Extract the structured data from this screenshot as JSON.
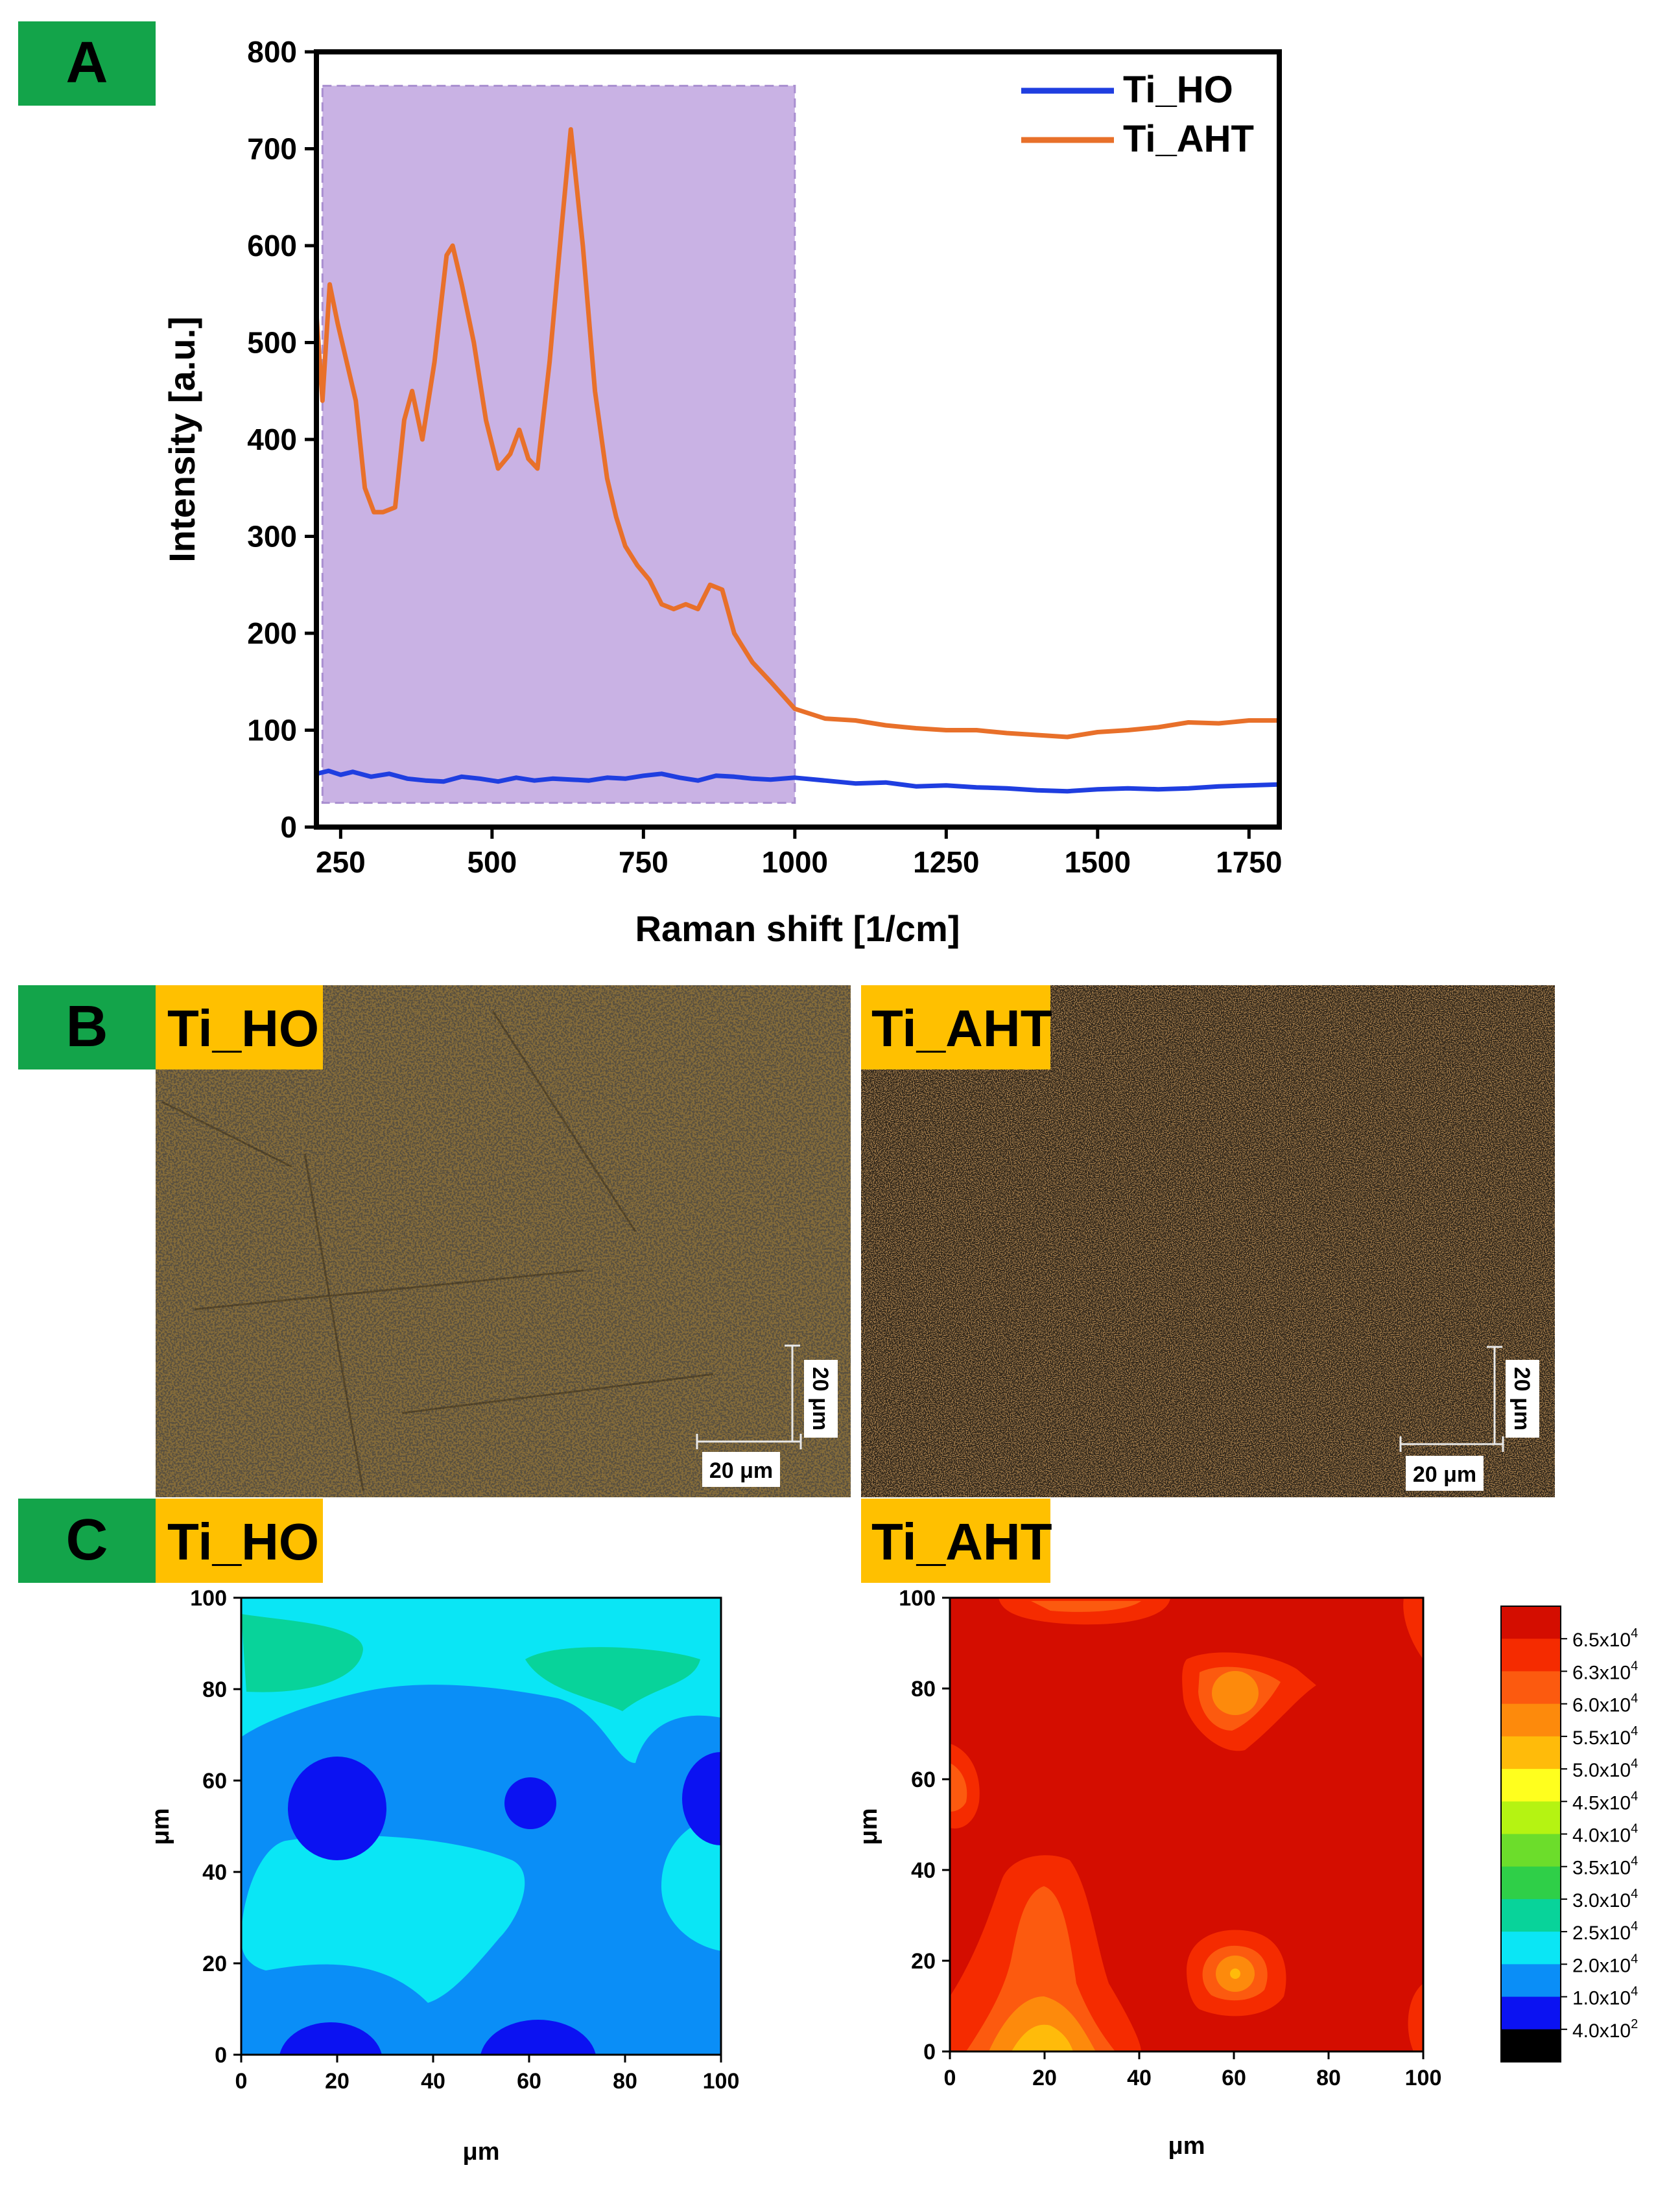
{
  "panels": {
    "A": {
      "label": "A"
    },
    "B": {
      "label": "B",
      "left_title": "Ti_HO",
      "right_title": "Ti_AHT",
      "scale_bar_h": "20 μm",
      "scale_bar_v": "20 μm"
    },
    "C": {
      "label": "C",
      "left_title": "Ti_HO",
      "right_title": "Ti_AHT"
    }
  },
  "colors": {
    "label_bg": "#13a44a",
    "title_bg": "#ffc000",
    "ho": "#1f3ee0",
    "aht": "#e8702a",
    "shade": "#c9b2e4"
  },
  "chart_data": [
    {
      "id": "raman",
      "type": "line",
      "title": "",
      "xlabel": "Raman shift [1/cm]",
      "ylabel": "Intensity [a.u.]",
      "xlim": [
        210,
        1800
      ],
      "ylim": [
        0,
        800
      ],
      "xticks": [
        250,
        500,
        750,
        1000,
        1250,
        1500,
        1750
      ],
      "yticks": [
        0,
        100,
        200,
        300,
        400,
        500,
        600,
        700,
        800
      ],
      "legend_position": "top-right",
      "shaded_region": {
        "x": [
          220,
          1000
        ],
        "y": [
          25,
          765
        ]
      },
      "series": [
        {
          "name": "Ti_HO",
          "color": "#1f3ee0",
          "x": [
            210,
            230,
            250,
            270,
            300,
            330,
            360,
            390,
            420,
            450,
            480,
            510,
            540,
            570,
            600,
            630,
            660,
            690,
            720,
            750,
            780,
            810,
            840,
            870,
            900,
            930,
            960,
            1000,
            1050,
            1100,
            1150,
            1200,
            1250,
            1300,
            1350,
            1400,
            1450,
            1500,
            1550,
            1600,
            1650,
            1700,
            1750,
            1800
          ],
          "y": [
            55,
            58,
            54,
            57,
            52,
            55,
            50,
            48,
            47,
            52,
            50,
            47,
            51,
            48,
            50,
            49,
            48,
            51,
            50,
            53,
            55,
            51,
            48,
            53,
            52,
            50,
            49,
            51,
            48,
            45,
            46,
            42,
            43,
            41,
            40,
            38,
            37,
            39,
            40,
            39,
            40,
            42,
            43,
            44
          ]
        },
        {
          "name": "Ti_AHT",
          "color": "#e8702a",
          "x": [
            210,
            220,
            232,
            245,
            260,
            275,
            290,
            305,
            320,
            340,
            355,
            368,
            385,
            405,
            425,
            435,
            450,
            470,
            490,
            510,
            530,
            545,
            560,
            575,
            595,
            615,
            630,
            650,
            670,
            690,
            705,
            720,
            740,
            760,
            780,
            800,
            820,
            840,
            860,
            880,
            900,
            930,
            960,
            1000,
            1050,
            1100,
            1150,
            1200,
            1250,
            1300,
            1350,
            1400,
            1450,
            1500,
            1550,
            1600,
            1650,
            1700,
            1750,
            1800
          ],
          "y": [
            530,
            440,
            560,
            520,
            480,
            440,
            350,
            325,
            325,
            330,
            420,
            450,
            400,
            480,
            590,
            600,
            560,
            500,
            420,
            370,
            385,
            410,
            380,
            370,
            480,
            620,
            720,
            600,
            450,
            360,
            320,
            290,
            270,
            255,
            230,
            225,
            230,
            225,
            250,
            245,
            200,
            170,
            150,
            122,
            112,
            110,
            105,
            102,
            100,
            100,
            97,
            95,
            93,
            98,
            100,
            103,
            108,
            107,
            110,
            110
          ]
        }
      ]
    },
    {
      "id": "map_ho",
      "type": "heatmap",
      "title": "Ti_HO",
      "xlabel": "μm",
      "ylabel": "μm",
      "xlim": [
        0,
        100
      ],
      "ylim": [
        0,
        100
      ],
      "xticks": [
        0,
        20,
        40,
        60,
        80,
        100
      ],
      "yticks": [
        0,
        20,
        40,
        60,
        80,
        100
      ],
      "levels_description": "1.0x10^4 to 3.0x10^4 (blue to teal)"
    },
    {
      "id": "map_aht",
      "type": "heatmap",
      "title": "Ti_AHT",
      "xlabel": "μm",
      "ylabel": "μm",
      "xlim": [
        0,
        100
      ],
      "ylim": [
        0,
        100
      ],
      "xticks": [
        0,
        20,
        40,
        60,
        80,
        100
      ],
      "yticks": [
        0,
        20,
        40,
        60,
        80,
        100
      ],
      "levels_description": "5.0x10^4 to 6.5x10^4 (yellow to red)"
    },
    {
      "id": "colorbar",
      "type": "colorbar",
      "legend_position": "right",
      "entries": [
        {
          "mantissa": "6.5x10",
          "exp": "4",
          "color": "#d40d00"
        },
        {
          "mantissa": "6.3x10",
          "exp": "4",
          "color": "#f52b00"
        },
        {
          "mantissa": "6.0x10",
          "exp": "4",
          "color": "#fc5a0f"
        },
        {
          "mantissa": "5.5x10",
          "exp": "4",
          "color": "#fd8a0c"
        },
        {
          "mantissa": "5.0x10",
          "exp": "4",
          "color": "#ffbb0a"
        },
        {
          "mantissa": "4.5x10",
          "exp": "4",
          "color": "#ffff1e"
        },
        {
          "mantissa": "4.0x10",
          "exp": "4",
          "color": "#b5f312"
        },
        {
          "mantissa": "3.5x10",
          "exp": "4",
          "color": "#6cdd2b"
        },
        {
          "mantissa": "3.0x10",
          "exp": "4",
          "color": "#2fcf48"
        },
        {
          "mantissa": "2.5x10",
          "exp": "4",
          "color": "#08d39a"
        },
        {
          "mantissa": "2.0x10",
          "exp": "4",
          "color": "#0ae6f5"
        },
        {
          "mantissa": "1.0x10",
          "exp": "4",
          "color": "#0a8ef7"
        },
        {
          "mantissa": "4.0x10",
          "exp": "2",
          "color": "#0b12f2"
        },
        {
          "mantissa": "",
          "exp": "",
          "color": "#000000"
        }
      ]
    }
  ]
}
